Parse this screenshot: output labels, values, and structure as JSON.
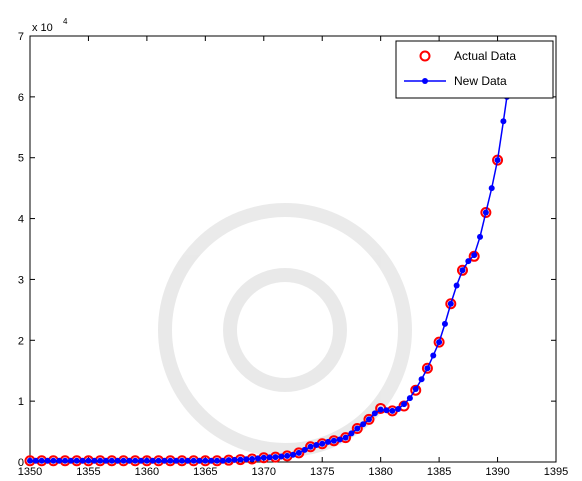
{
  "chart_data": {
    "type": "line",
    "y_scale_label": "x 10",
    "y_scale_exponent": "4",
    "xlim": [
      1350,
      1395
    ],
    "xticks": [
      1350,
      1355,
      1360,
      1365,
      1370,
      1375,
      1380,
      1385,
      1390,
      1395
    ],
    "ylim": [
      0,
      7
    ],
    "yticks": [
      0,
      1,
      2,
      3,
      4,
      5,
      6,
      7
    ],
    "legend": "northeast",
    "series": [
      {
        "name": "Actual Data",
        "color": "#ff0000",
        "marker": "circle",
        "x": [
          1350,
          1351,
          1352,
          1353,
          1354,
          1355,
          1356,
          1357,
          1358,
          1359,
          1360,
          1361,
          1362,
          1363,
          1364,
          1365,
          1366,
          1367,
          1368,
          1369,
          1370,
          1371,
          1372,
          1373,
          1374,
          1375,
          1376,
          1377,
          1378,
          1379,
          1380,
          1381,
          1382,
          1383,
          1384,
          1385,
          1386,
          1387,
          1388,
          1389,
          1390
        ],
        "values": [
          0.02,
          0.02,
          0.02,
          0.02,
          0.02,
          0.02,
          0.02,
          0.02,
          0.02,
          0.02,
          0.02,
          0.02,
          0.02,
          0.02,
          0.02,
          0.02,
          0.02,
          0.03,
          0.04,
          0.05,
          0.07,
          0.08,
          0.1,
          0.15,
          0.25,
          0.3,
          0.35,
          0.4,
          0.55,
          0.7,
          0.88,
          0.84,
          0.92,
          1.18,
          1.54,
          1.97,
          2.6,
          3.15,
          3.38,
          4.1,
          4.96
        ]
      },
      {
        "name": "New Data",
        "color": "#0000ff",
        "marker": "dot-line",
        "x": [
          1350,
          1350.5,
          1351,
          1351.5,
          1352,
          1352.5,
          1353,
          1353.5,
          1354,
          1354.5,
          1355,
          1355.5,
          1356,
          1356.5,
          1357,
          1357.5,
          1358,
          1358.5,
          1359,
          1359.5,
          1360,
          1360.5,
          1361,
          1361.5,
          1362,
          1362.5,
          1363,
          1363.5,
          1364,
          1364.5,
          1365,
          1365.5,
          1366,
          1366.5,
          1367,
          1367.5,
          1368,
          1368.5,
          1369,
          1369.5,
          1370,
          1370.5,
          1371,
          1371.5,
          1372,
          1372.5,
          1373,
          1373.5,
          1374,
          1374.5,
          1375,
          1375.5,
          1376,
          1376.5,
          1377,
          1377.5,
          1378,
          1378.5,
          1379,
          1379.5,
          1380,
          1380.5,
          1381,
          1381.5,
          1382,
          1382.5,
          1383,
          1383.5,
          1384,
          1384.5,
          1385,
          1385.5,
          1386,
          1386.5,
          1387,
          1387.5,
          1388,
          1388.5,
          1389,
          1389.5,
          1390,
          1390.5,
          1390.8
        ],
        "values": [
          0.02,
          0.02,
          0.02,
          0.02,
          0.02,
          0.02,
          0.02,
          0.02,
          0.02,
          0.02,
          0.02,
          0.02,
          0.02,
          0.02,
          0.02,
          0.02,
          0.02,
          0.02,
          0.02,
          0.02,
          0.02,
          0.02,
          0.02,
          0.02,
          0.02,
          0.02,
          0.02,
          0.02,
          0.02,
          0.02,
          0.02,
          0.02,
          0.02,
          0.02,
          0.03,
          0.035,
          0.04,
          0.045,
          0.05,
          0.06,
          0.07,
          0.075,
          0.08,
          0.09,
          0.1,
          0.12,
          0.15,
          0.2,
          0.25,
          0.28,
          0.3,
          0.33,
          0.35,
          0.37,
          0.4,
          0.47,
          0.55,
          0.62,
          0.7,
          0.8,
          0.86,
          0.85,
          0.84,
          0.87,
          0.95,
          1.05,
          1.2,
          1.36,
          1.54,
          1.75,
          1.97,
          2.27,
          2.6,
          2.9,
          3.15,
          3.3,
          3.4,
          3.7,
          4.1,
          4.5,
          4.96,
          5.6,
          6.0
        ]
      }
    ]
  }
}
